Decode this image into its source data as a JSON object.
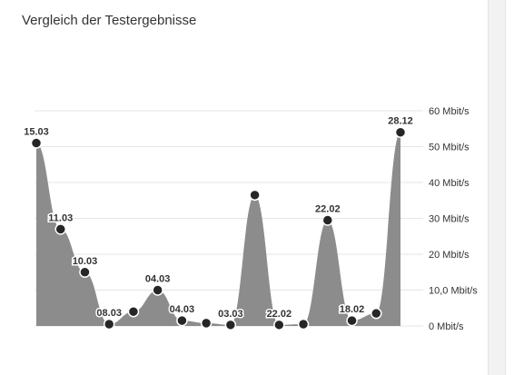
{
  "title": "Vergleich der Testergebnisse",
  "colors": {
    "area": "#8c8c8c",
    "point_fill": "#262626",
    "point_stroke": "#ffffff",
    "grid": "#e6e6e6",
    "text": "#333333"
  },
  "chart_data": {
    "type": "area",
    "title": "Vergleich der Testergebnisse",
    "y_axis_position": "right",
    "ylim": [
      0,
      60
    ],
    "yticks": [
      0,
      10,
      20,
      30,
      40,
      50,
      60
    ],
    "ytick_labels": [
      "0 Mbit/s",
      "10,0 Mbit/s",
      "20 Mbit/s",
      "30 Mbit/s",
      "40 Mbit/s",
      "50 Mbit/s",
      "60 Mbit/s"
    ],
    "grid": true,
    "points": [
      {
        "y": 51.0,
        "label": "15.03"
      },
      {
        "y": 27.0,
        "label": "11.03"
      },
      {
        "y": 15.0,
        "label": "10.03"
      },
      {
        "y": 0.5,
        "label": "08.03"
      },
      {
        "y": 4.0,
        "label": ""
      },
      {
        "y": 10.0,
        "label": "04.03"
      },
      {
        "y": 1.5,
        "label": "04.03"
      },
      {
        "y": 0.8,
        "label": ""
      },
      {
        "y": 0.3,
        "label": "03.03"
      },
      {
        "y": 36.5,
        "label": ""
      },
      {
        "y": 0.3,
        "label": "22.02"
      },
      {
        "y": 0.5,
        "label": ""
      },
      {
        "y": 29.5,
        "label": "22.02"
      },
      {
        "y": 1.5,
        "label": "18.02"
      },
      {
        "y": 3.5,
        "label": ""
      },
      {
        "y": 54.0,
        "label": "28.12"
      }
    ]
  }
}
